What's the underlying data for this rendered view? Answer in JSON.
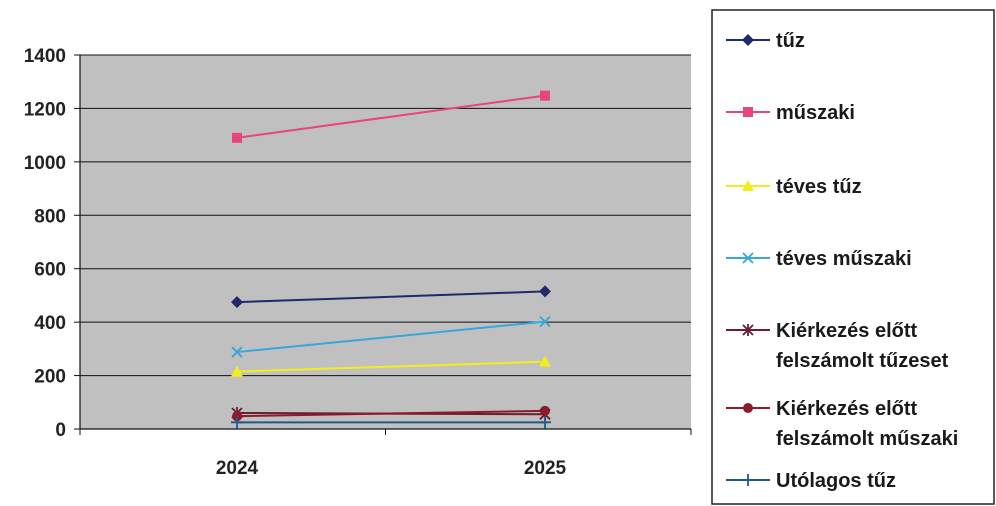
{
  "chart_data": {
    "type": "line",
    "categories": [
      "2024",
      "2025"
    ],
    "ylim": [
      0,
      1400
    ],
    "yticks": [
      0,
      200,
      400,
      600,
      800,
      1000,
      1200,
      1400
    ],
    "grid": true,
    "legend_position": "right",
    "plot_background": "#c0c0c0",
    "series": [
      {
        "name": "tűz",
        "values": [
          475,
          515
        ],
        "color": "#1f2a6b",
        "marker": "diamond"
      },
      {
        "name": "műszaki",
        "values": [
          1090,
          1248
        ],
        "color": "#e8457a",
        "marker": "square"
      },
      {
        "name": "téves tűz",
        "values": [
          215,
          252
        ],
        "color": "#f2ee1e",
        "marker": "triangle"
      },
      {
        "name": "téves műszaki",
        "values": [
          288,
          402
        ],
        "color": "#35a7db",
        "marker": "x"
      },
      {
        "name": "Kiérkezés előtt felszámolt tűzeset",
        "lines": [
          "Kiérkezés előtt",
          "felszámolt tűzeset"
        ],
        "values": [
          60,
          55
        ],
        "color": "#6b1e33",
        "marker": "star"
      },
      {
        "name": "Kiérkezés előtt felszámolt műszaki",
        "lines": [
          "Kiérkezés előtt",
          "felszámolt műszaki"
        ],
        "values": [
          48,
          68
        ],
        "color": "#8b1a2b",
        "marker": "circle"
      },
      {
        "name": "Utólagos tűz",
        "values": [
          25,
          25
        ],
        "color": "#1d5a8c",
        "marker": "plus"
      }
    ]
  }
}
